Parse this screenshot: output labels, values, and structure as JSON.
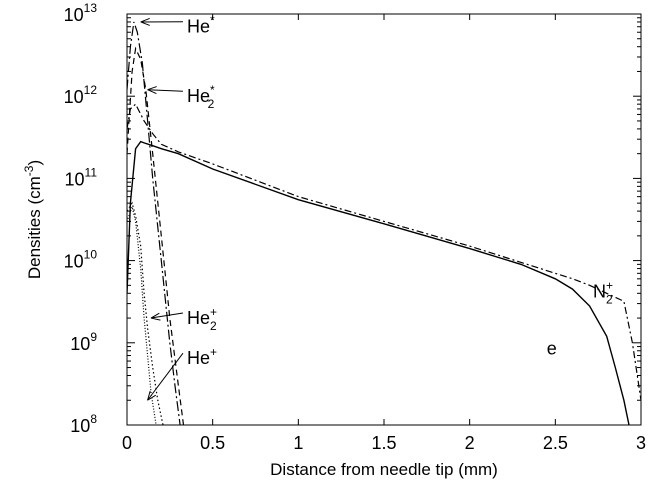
{
  "chart_data": {
    "type": "line",
    "title": "",
    "xlabel": "Distance from needle tip (mm)",
    "ylabel_main": "Densities (cm",
    "ylabel_exp": "-3",
    "ylabel_close": ")",
    "xlim": [
      0,
      3
    ],
    "ylim": [
      100000000.0,
      10000000000000.0
    ],
    "yscale": "log",
    "grid": false,
    "legend": "none",
    "x_ticks": [
      "0",
      "0.5",
      "1",
      "1.5",
      "2",
      "2.5",
      "3"
    ],
    "y_ticks": [
      {
        "base": "10",
        "exp": "8"
      },
      {
        "base": "10",
        "exp": "9"
      },
      {
        "base": "10",
        "exp": "10"
      },
      {
        "base": "10",
        "exp": "11"
      },
      {
        "base": "10",
        "exp": "12"
      },
      {
        "base": "10",
        "exp": "13"
      }
    ],
    "series": [
      {
        "name": "He*",
        "label_main": "He",
        "label_sup": "*",
        "label_sub": "",
        "style": "dash-dot-long",
        "x": [
          0,
          0.02,
          0.04,
          0.06,
          0.09,
          0.12,
          0.15,
          0.2,
          0.25,
          0.28,
          0.31
        ],
        "y": [
          1200000000000.0,
          4000000000000.0,
          8000000000000.0,
          6000000000000.0,
          2500000000000.0,
          500000000000.0,
          100000000000.0,
          10000000000.0,
          1000000000.0,
          300000000.0,
          100000000.0
        ]
      },
      {
        "name": "He2*",
        "label_main": "He",
        "label_sup": "*",
        "label_sub": "2",
        "style": "dashed",
        "x": [
          0,
          0.03,
          0.05,
          0.08,
          0.11,
          0.15,
          0.2,
          0.25,
          0.3,
          0.33
        ],
        "y": [
          200000000000.0,
          2000000000000.0,
          3800000000000.0,
          2800000000000.0,
          1200000000000.0,
          200000000000.0,
          20000000000.0,
          2000000000.0,
          300000000.0,
          100000000.0
        ]
      },
      {
        "name": "N2+",
        "label_main": "N",
        "label_sup": "+",
        "label_sub": "2",
        "style": "dash-dot",
        "x": [
          0,
          0.02,
          0.05,
          0.1,
          0.15,
          0.2,
          0.3,
          0.5,
          1.0,
          1.5,
          2.0,
          2.3,
          2.5,
          2.6,
          2.7,
          2.8,
          2.9,
          2.95,
          3.0
        ],
        "y": [
          400000000000.0,
          700000000000.0,
          800000000000.0,
          500000000000.0,
          350000000000.0,
          260000000000.0,
          210000000000.0,
          150000000000.0,
          60000000000.0,
          30000000000.0,
          15000000000.0,
          9500000000.0,
          7000000000.0,
          6000000000.0,
          5000000000.0,
          4000000000.0,
          3200000000.0,
          1000000000.0,
          200000000.0
        ]
      },
      {
        "name": "e",
        "label_main": "e",
        "label_sup": "",
        "label_sub": "",
        "style": "solid",
        "x": [
          0,
          0.02,
          0.05,
          0.08,
          0.1,
          0.15,
          0.2,
          0.3,
          0.5,
          1.0,
          1.5,
          2.0,
          2.3,
          2.5,
          2.6,
          2.7,
          2.8,
          2.85,
          2.9,
          2.93
        ],
        "y": [
          4000000000.0,
          50000000000.0,
          230000000000.0,
          280000000000.0,
          270000000000.0,
          250000000000.0,
          230000000000.0,
          200000000000.0,
          130000000000.0,
          55000000000.0,
          28000000000.0,
          14000000000.0,
          9000000000.0,
          6000000000.0,
          4500000000.0,
          2800000000.0,
          1200000000.0,
          500000000.0,
          200000000.0,
          100000000.0
        ]
      },
      {
        "name": "He2+",
        "label_main": "He",
        "label_sup": "+",
        "label_sub": "2",
        "style": "dotted",
        "x": [
          0,
          0.03,
          0.05,
          0.08,
          0.1,
          0.12,
          0.15,
          0.18,
          0.21
        ],
        "y": [
          40000000000.0,
          50000000000.0,
          35000000000.0,
          15000000000.0,
          4000000000.0,
          1500000000.0,
          500000000.0,
          200000000.0,
          100000000.0
        ]
      },
      {
        "name": "He+",
        "label_main": "He",
        "label_sup": "+",
        "label_sub": "",
        "style": "dotted-fine",
        "x": [
          0,
          0.03,
          0.05,
          0.08,
          0.1,
          0.12,
          0.14,
          0.17
        ],
        "y": [
          30000000000.0,
          45000000000.0,
          30000000000.0,
          8000000000.0,
          2000000000.0,
          700000000.0,
          250000000.0,
          100000000.0
        ]
      }
    ],
    "annotations": [
      {
        "series": "He*",
        "text_x": 0.35,
        "text_y": 7000000000000.0,
        "arrow_x": 0.08,
        "arrow_y": 8000000000000.0
      },
      {
        "series": "He2*",
        "text_x": 0.35,
        "text_y": 1000000000000.0,
        "arrow_x": 0.12,
        "arrow_y": 1200000000000.0
      },
      {
        "series": "He2+",
        "text_x": 0.35,
        "text_y": 2000000000.0,
        "arrow_x": 0.14,
        "arrow_y": 2000000000.0
      },
      {
        "series": "He+",
        "text_x": 0.35,
        "text_y": 650000000.0,
        "arrow_x": 0.12,
        "arrow_y": 200000000.0
      },
      {
        "series": "N2+",
        "text_x": 2.72,
        "text_y": 4200000000.0,
        "arrow_x": null,
        "arrow_y": null
      },
      {
        "series": "e",
        "text_x": 2.45,
        "text_y": 850000000.0,
        "arrow_x": null,
        "arrow_y": null
      }
    ]
  }
}
